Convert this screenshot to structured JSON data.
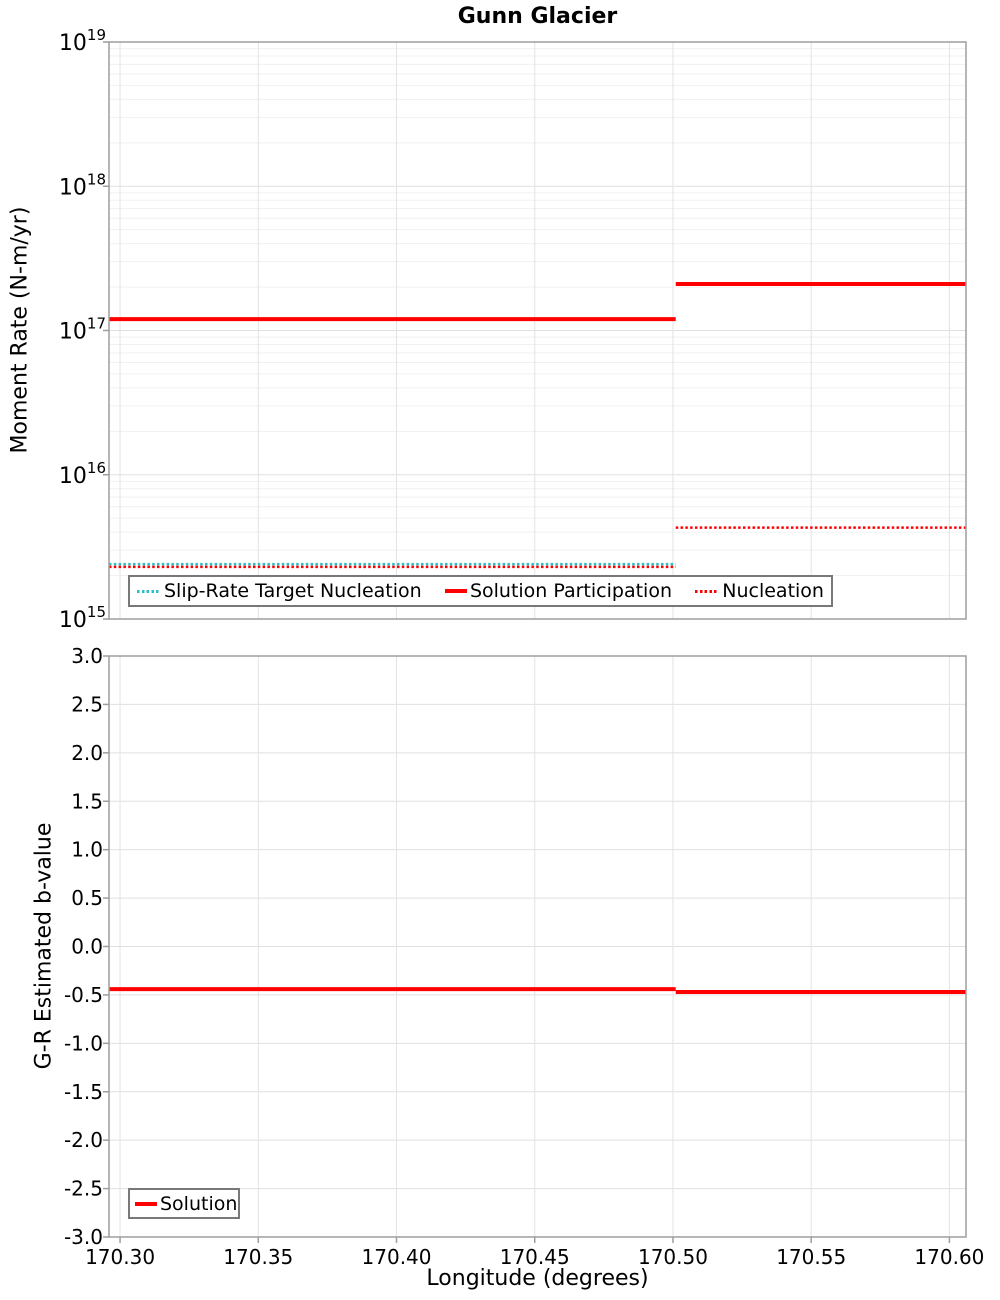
{
  "colors": {
    "accent_red": "#FF0000",
    "accent_teal": "#2DBEC3",
    "grid_major": "#E0E0E0",
    "grid_minor": "#F1F1F1",
    "grid_vertical": "#E3E3E3",
    "spine": "#9E9E9E",
    "legend_border": "#787878",
    "text": "#000000"
  },
  "chart_data": [
    {
      "type": "line",
      "panel": "top",
      "title": "Gunn Glacier",
      "ylabel": "Moment Rate (N-m/yr)",
      "xlabel": "",
      "y_scale": "log",
      "y_range": [
        1000000000000000.0,
        1e+19
      ],
      "y_ticks": [
        {
          "base": "10",
          "exp": "19",
          "value": 1e+19
        },
        {
          "base": "10",
          "exp": "18",
          "value": 1e+18
        },
        {
          "base": "10",
          "exp": "17",
          "value": 1e+17
        },
        {
          "base": "10",
          "exp": "16",
          "value": 1e+16
        },
        {
          "base": "10",
          "exp": "15",
          "value": 1000000000000000.0
        }
      ],
      "x_range": [
        170.296,
        170.606
      ],
      "x_ticks": [
        {
          "label": "170.30",
          "value": 170.3
        },
        {
          "label": "170.35",
          "value": 170.35
        },
        {
          "label": "170.40",
          "value": 170.4
        },
        {
          "label": "170.45",
          "value": 170.45
        },
        {
          "label": "170.50",
          "value": 170.5
        },
        {
          "label": "170.55",
          "value": 170.55
        },
        {
          "label": "170.60",
          "value": 170.6
        }
      ],
      "show_x_tick_labels": false,
      "grid": true,
      "legend_position": "bottom-left",
      "series": [
        {
          "name": "Slip-Rate Target Nucleation",
          "color": "#2DBEC3",
          "style": "dotted",
          "width": 2.5,
          "segments": [
            {
              "x_start": 170.296,
              "x_end": 170.501,
              "y": 2400000000000000.0
            }
          ]
        },
        {
          "name": "Solution Participation",
          "color": "#FF0000",
          "style": "solid",
          "width": 4,
          "segments": [
            {
              "x_start": 170.296,
              "x_end": 170.501,
              "y": 1.2e+17
            },
            {
              "x_start": 170.501,
              "x_end": 170.606,
              "y": 2.1e+17
            }
          ]
        },
        {
          "name": "Nucleation",
          "color": "#FF0000",
          "style": "dotted",
          "width": 2.5,
          "segments": [
            {
              "x_start": 170.296,
              "x_end": 170.501,
              "y": 2300000000000000.0
            },
            {
              "x_start": 170.501,
              "x_end": 170.606,
              "y": 4300000000000000.0
            }
          ]
        }
      ]
    },
    {
      "type": "line",
      "panel": "bottom",
      "title": "",
      "ylabel": "G-R Estimated b-value",
      "xlabel": "Longitude (degrees)",
      "y_scale": "linear",
      "y_range": [
        -3.0,
        3.0
      ],
      "y_ticks": [
        {
          "label": "3.0",
          "value": 3.0
        },
        {
          "label": "2.5",
          "value": 2.5
        },
        {
          "label": "2.0",
          "value": 2.0
        },
        {
          "label": "1.5",
          "value": 1.5
        },
        {
          "label": "1.0",
          "value": 1.0
        },
        {
          "label": "0.5",
          "value": 0.5
        },
        {
          "label": "0.0",
          "value": 0.0
        },
        {
          "label": "-0.5",
          "value": -0.5
        },
        {
          "label": "-1.0",
          "value": -1.0
        },
        {
          "label": "-1.5",
          "value": -1.5
        },
        {
          "label": "-2.0",
          "value": -2.0
        },
        {
          "label": "-2.5",
          "value": -2.5
        },
        {
          "label": "-3.0",
          "value": -3.0
        }
      ],
      "x_range": [
        170.296,
        170.606
      ],
      "x_ticks": [
        {
          "label": "170.30",
          "value": 170.3
        },
        {
          "label": "170.35",
          "value": 170.35
        },
        {
          "label": "170.40",
          "value": 170.4
        },
        {
          "label": "170.45",
          "value": 170.45
        },
        {
          "label": "170.50",
          "value": 170.5
        },
        {
          "label": "170.55",
          "value": 170.55
        },
        {
          "label": "170.60",
          "value": 170.6
        }
      ],
      "show_x_tick_labels": true,
      "grid": true,
      "legend_position": "bottom-left",
      "series": [
        {
          "name": "Solution",
          "color": "#FF0000",
          "style": "solid",
          "width": 4,
          "segments": [
            {
              "x_start": 170.296,
              "x_end": 170.501,
              "y": -0.44
            },
            {
              "x_start": 170.501,
              "x_end": 170.606,
              "y": -0.47
            }
          ]
        }
      ]
    }
  ]
}
